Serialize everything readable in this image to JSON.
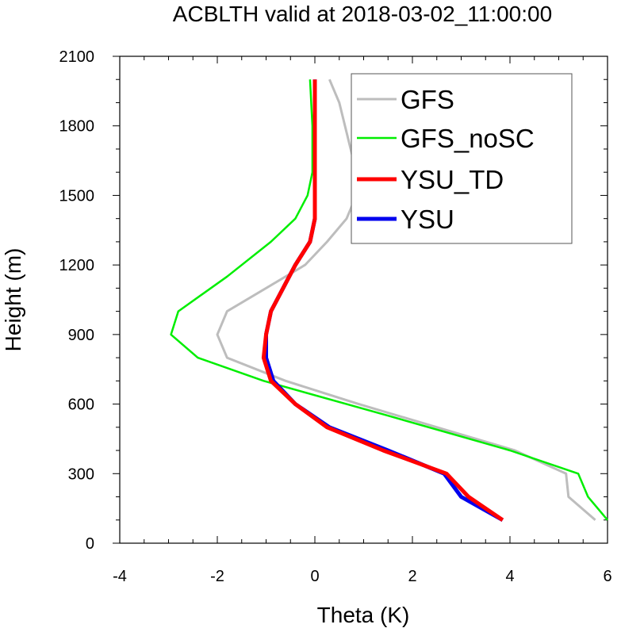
{
  "chart_data": {
    "type": "line",
    "title": "ACBLTH valid at 2018-03-02_11:00:00",
    "xlabel": "Theta (K)",
    "ylabel": "Height (m)",
    "xlim": [
      -4,
      6
    ],
    "ylim": [
      0,
      2100
    ],
    "xticks": [
      -4,
      -2,
      0,
      2,
      4,
      6
    ],
    "yticks": [
      0,
      300,
      600,
      900,
      1200,
      1500,
      1800,
      2100
    ],
    "x_tick_labels": [
      "-4",
      "-2",
      "0",
      "2",
      "4",
      "6"
    ],
    "y_tick_labels": [
      "0",
      "300",
      "600",
      "900",
      "1200",
      "1500",
      "1800",
      "2100"
    ],
    "grid": false,
    "legend_position": "top-right",
    "series": [
      {
        "name": "GFS",
        "color": "#bdbdbd",
        "points": [
          [
            5.75,
            100
          ],
          [
            5.2,
            200
          ],
          [
            5.15,
            300
          ],
          [
            4.1,
            400
          ],
          [
            2.5,
            500
          ],
          [
            0.9,
            600
          ],
          [
            -0.6,
            700
          ],
          [
            -1.8,
            800
          ],
          [
            -2.0,
            900
          ],
          [
            -1.8,
            1000
          ],
          [
            -0.2,
            1200
          ],
          [
            0.25,
            1300
          ],
          [
            0.65,
            1400
          ],
          [
            0.85,
            1500
          ],
          [
            0.85,
            1600
          ],
          [
            0.5,
            1900
          ],
          [
            0.3,
            2000
          ]
        ]
      },
      {
        "name": "GFS_noSC",
        "color": "#00ee00",
        "points": [
          [
            6.0,
            100
          ],
          [
            5.6,
            200
          ],
          [
            5.4,
            300
          ],
          [
            4.0,
            400
          ],
          [
            1.5,
            550
          ],
          [
            -1.05,
            700
          ],
          [
            -2.4,
            800
          ],
          [
            -2.95,
            900
          ],
          [
            -2.8,
            1000
          ],
          [
            -1.8,
            1150
          ],
          [
            -0.9,
            1300
          ],
          [
            -0.4,
            1400
          ],
          [
            -0.15,
            1500
          ],
          [
            -0.05,
            1600
          ],
          [
            -0.05,
            1800
          ],
          [
            -0.1,
            2000
          ]
        ]
      },
      {
        "name": "YSU_TD",
        "color": "#ff0000",
        "points": [
          [
            3.85,
            100
          ],
          [
            3.15,
            200
          ],
          [
            2.7,
            300
          ],
          [
            1.4,
            400
          ],
          [
            0.25,
            500
          ],
          [
            -0.4,
            600
          ],
          [
            -0.9,
            700
          ],
          [
            -1.05,
            800
          ],
          [
            -1.0,
            900
          ],
          [
            -0.9,
            1000
          ],
          [
            -0.4,
            1200
          ],
          [
            -0.1,
            1300
          ],
          [
            0.0,
            1400
          ],
          [
            0.0,
            1600
          ],
          [
            0.0,
            2000
          ]
        ]
      },
      {
        "name": "YSU",
        "color": "#0000ee",
        "points": [
          [
            3.85,
            100
          ],
          [
            3.0,
            200
          ],
          [
            2.65,
            300
          ],
          [
            1.5,
            400
          ],
          [
            0.3,
            500
          ],
          [
            -0.4,
            600
          ],
          [
            -0.85,
            700
          ],
          [
            -1.0,
            800
          ],
          [
            -1.0,
            900
          ],
          [
            -0.9,
            1000
          ],
          [
            -0.4,
            1200
          ],
          [
            -0.1,
            1300
          ],
          [
            0.0,
            1400
          ],
          [
            0.0,
            1600
          ],
          [
            0.0,
            2000
          ]
        ]
      }
    ]
  }
}
